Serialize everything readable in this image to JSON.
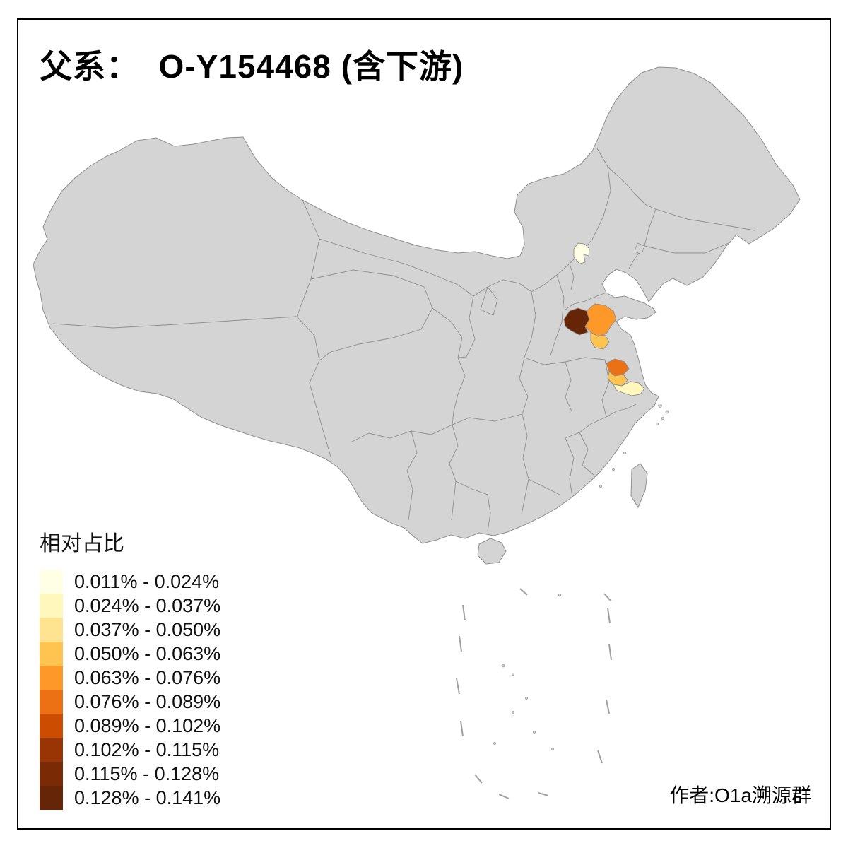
{
  "title": "父系：  O-Y154468 (含下游)",
  "credit": "作者:O1a溯源群",
  "legend": {
    "title": "相对占比",
    "classes": [
      {
        "label": "0.011% - 0.024%",
        "color": "#FFFFE5"
      },
      {
        "label": "0.024% - 0.037%",
        "color": "#FFF7BC"
      },
      {
        "label": "0.037% - 0.050%",
        "color": "#FEE391"
      },
      {
        "label": "0.050% - 0.063%",
        "color": "#FEC44F"
      },
      {
        "label": "0.063% - 0.076%",
        "color": "#FE9929"
      },
      {
        "label": "0.076% - 0.089%",
        "color": "#EC7014"
      },
      {
        "label": "0.089% - 0.102%",
        "color": "#CC4C02"
      },
      {
        "label": "0.102% - 0.115%",
        "color": "#993404"
      },
      {
        "label": "0.115% - 0.128%",
        "color": "#7A2B05"
      },
      {
        "label": "0.128% - 0.141%",
        "color": "#662506"
      }
    ]
  },
  "map": {
    "base_fill": "#D4D4D4",
    "border_color": "#8F8F8F",
    "background": "#FFFFFF",
    "highlighted_regions": [
      {
        "name": "beijing-area",
        "color": "#FFFFE5",
        "class_label": "0.011% - 0.024%"
      },
      {
        "name": "southwest-shandong",
        "color": "#662506",
        "class_label": "0.128% - 0.141%"
      },
      {
        "name": "central-shandong",
        "color": "#FE9929",
        "class_label": "0.063% - 0.076%"
      },
      {
        "name": "south-shandong",
        "color": "#FEC44F",
        "class_label": "0.050% - 0.063%"
      },
      {
        "name": "north-jiangsu",
        "color": "#EC7014",
        "class_label": "0.076% - 0.089%"
      },
      {
        "name": "central-jiangsu",
        "color": "#FEC44F",
        "class_label": "0.050% - 0.063%"
      },
      {
        "name": "southeast-jiangsu",
        "color": "#FFF7BC",
        "class_label": "0.024% - 0.037%"
      }
    ]
  }
}
